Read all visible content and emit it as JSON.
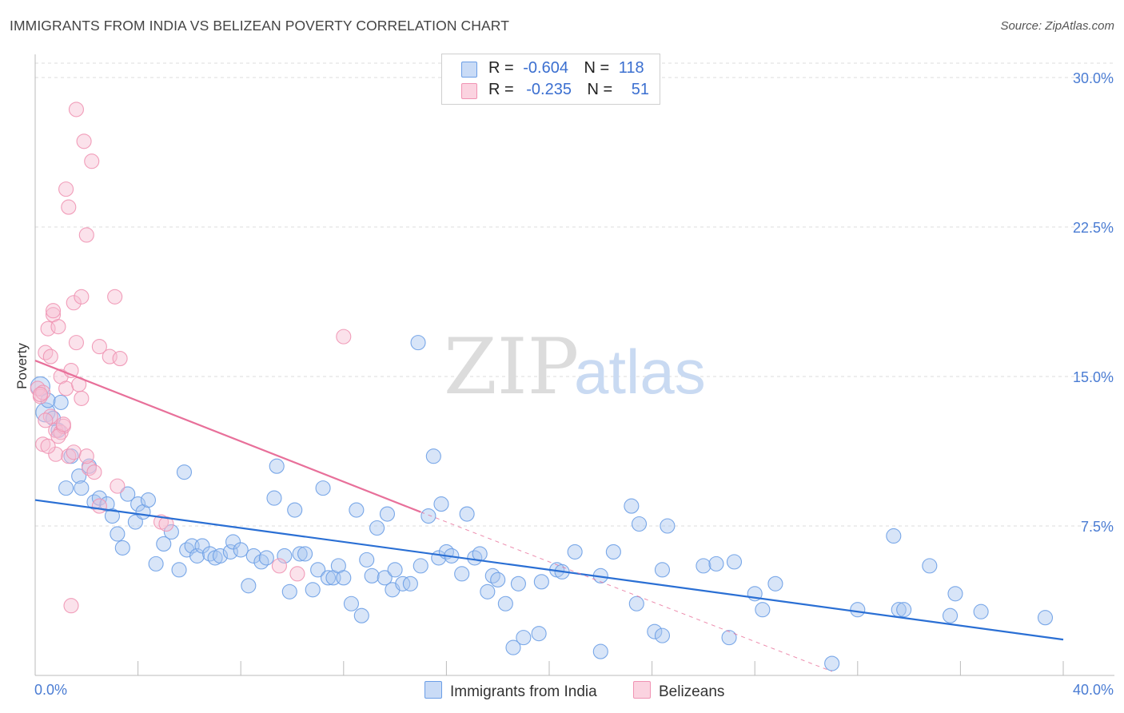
{
  "title": "IMMIGRANTS FROM INDIA VS BELIZEAN POVERTY CORRELATION CHART",
  "source": "Source: ZipAtlas.com",
  "watermark": {
    "zip": "ZIP",
    "atlas": "atlas"
  },
  "colors": {
    "blue": "#6b9ee6",
    "blue_fill": "#a9c6f0",
    "pink": "#f093b3",
    "pink_fill": "#f7bfd2",
    "blue_line": "#2a6fd4",
    "pink_line": "#e8709a",
    "tick_text": "#4a7cd3"
  },
  "legend": {
    "rows": [
      {
        "r_label": "R =",
        "r_value": "-0.604",
        "n_label": "N =",
        "n_value": "118"
      },
      {
        "r_label": "R =",
        "r_value": "-0.235",
        "n_label": "N =",
        "n_value": "51"
      }
    ]
  },
  "bottom_legend": {
    "india": "Immigrants from India",
    "belize": "Belizeans"
  },
  "chart_data": {
    "type": "scatter",
    "title": "IMMIGRANTS FROM INDIA VS BELIZEAN POVERTY CORRELATION CHART",
    "xlabel": "",
    "ylabel": "Poverty",
    "xlim": [
      0,
      40
    ],
    "ylim": [
      0,
      30.0
    ],
    "x_tick_labels": [
      "0.0%",
      "40.0%"
    ],
    "y_ticks": [
      7.5,
      15.0,
      22.5,
      30.0
    ],
    "y_tick_labels": [
      "7.5%",
      "15.0%",
      "22.5%",
      "30.0%"
    ],
    "grid": true,
    "legend_position": "top-center",
    "series": [
      {
        "name": "Immigrants from India",
        "trend": [
          [
            0,
            8.8
          ],
          [
            40,
            1.8
          ]
        ],
        "points": [
          [
            0.2,
            14.5
          ],
          [
            0.4,
            13.2
          ],
          [
            0.5,
            13.8
          ],
          [
            0.9,
            12.3
          ],
          [
            1.0,
            13.7
          ],
          [
            1.2,
            9.4
          ],
          [
            1.4,
            11.0
          ],
          [
            1.7,
            10.0
          ],
          [
            1.8,
            9.4
          ],
          [
            2.1,
            10.5
          ],
          [
            2.3,
            8.7
          ],
          [
            2.5,
            8.9
          ],
          [
            2.8,
            8.6
          ],
          [
            3.0,
            8.0
          ],
          [
            3.2,
            7.1
          ],
          [
            3.4,
            6.4
          ],
          [
            3.6,
            9.1
          ],
          [
            3.9,
            7.7
          ],
          [
            4.0,
            8.6
          ],
          [
            4.2,
            8.2
          ],
          [
            4.4,
            8.8
          ],
          [
            4.7,
            5.6
          ],
          [
            5.0,
            6.6
          ],
          [
            5.3,
            7.2
          ],
          [
            5.6,
            5.3
          ],
          [
            5.8,
            10.2
          ],
          [
            5.9,
            6.3
          ],
          [
            6.1,
            6.5
          ],
          [
            6.3,
            6.0
          ],
          [
            6.5,
            6.5
          ],
          [
            6.8,
            6.1
          ],
          [
            7.0,
            5.9
          ],
          [
            7.2,
            6.0
          ],
          [
            7.6,
            6.2
          ],
          [
            7.7,
            6.7
          ],
          [
            8.0,
            6.3
          ],
          [
            8.3,
            4.5
          ],
          [
            8.5,
            6.0
          ],
          [
            8.8,
            5.7
          ],
          [
            9.0,
            5.9
          ],
          [
            9.3,
            8.9
          ],
          [
            9.4,
            10.5
          ],
          [
            9.7,
            6.0
          ],
          [
            9.9,
            4.2
          ],
          [
            10.1,
            8.3
          ],
          [
            10.3,
            6.1
          ],
          [
            10.5,
            6.1
          ],
          [
            10.8,
            4.3
          ],
          [
            11.0,
            5.3
          ],
          [
            11.2,
            9.4
          ],
          [
            11.4,
            4.9
          ],
          [
            11.6,
            4.9
          ],
          [
            11.8,
            5.5
          ],
          [
            12.0,
            4.9
          ],
          [
            12.3,
            3.6
          ],
          [
            12.5,
            8.3
          ],
          [
            12.7,
            3.0
          ],
          [
            12.9,
            5.8
          ],
          [
            13.1,
            5.0
          ],
          [
            13.3,
            7.4
          ],
          [
            13.6,
            4.9
          ],
          [
            13.7,
            8.1
          ],
          [
            13.9,
            4.3
          ],
          [
            14.0,
            5.3
          ],
          [
            14.3,
            4.6
          ],
          [
            14.6,
            4.6
          ],
          [
            14.9,
            16.7
          ],
          [
            15.0,
            5.5
          ],
          [
            15.3,
            8.0
          ],
          [
            15.5,
            11.0
          ],
          [
            15.7,
            5.9
          ],
          [
            15.8,
            8.6
          ],
          [
            16.0,
            6.2
          ],
          [
            16.2,
            6.0
          ],
          [
            16.6,
            5.1
          ],
          [
            16.8,
            8.1
          ],
          [
            17.1,
            5.9
          ],
          [
            17.3,
            6.1
          ],
          [
            17.6,
            4.2
          ],
          [
            17.8,
            5.0
          ],
          [
            18.0,
            4.8
          ],
          [
            18.3,
            3.6
          ],
          [
            18.6,
            1.4
          ],
          [
            18.8,
            4.6
          ],
          [
            19.0,
            1.9
          ],
          [
            19.6,
            2.1
          ],
          [
            19.7,
            4.7
          ],
          [
            20.3,
            5.3
          ],
          [
            20.5,
            5.2
          ],
          [
            21.0,
            6.2
          ],
          [
            22.0,
            1.2
          ],
          [
            22.0,
            5.0
          ],
          [
            22.5,
            6.2
          ],
          [
            23.2,
            8.5
          ],
          [
            23.4,
            3.6
          ],
          [
            23.5,
            7.6
          ],
          [
            24.1,
            2.2
          ],
          [
            24.4,
            2.0
          ],
          [
            24.4,
            5.3
          ],
          [
            24.6,
            7.5
          ],
          [
            26.0,
            5.5
          ],
          [
            26.5,
            5.6
          ],
          [
            27.0,
            1.9
          ],
          [
            27.2,
            5.7
          ],
          [
            28.0,
            4.1
          ],
          [
            28.3,
            3.3
          ],
          [
            28.8,
            4.6
          ],
          [
            31.0,
            0.6
          ],
          [
            32.0,
            3.3
          ],
          [
            33.4,
            7.0
          ],
          [
            33.6,
            3.3
          ],
          [
            33.8,
            3.3
          ],
          [
            34.8,
            5.5
          ],
          [
            35.6,
            3.0
          ],
          [
            35.8,
            4.1
          ],
          [
            36.8,
            3.2
          ],
          [
            39.3,
            2.9
          ],
          [
            0.7,
            12.9
          ]
        ]
      },
      {
        "name": "Belizeans",
        "trend": [
          [
            0,
            15.8
          ],
          [
            15.0,
            8.2
          ]
        ],
        "trend_extension": [
          [
            15.0,
            8.2
          ],
          [
            31.0,
            0.2
          ]
        ],
        "points": [
          [
            0.1,
            14.4
          ],
          [
            0.2,
            14.0
          ],
          [
            0.3,
            11.6
          ],
          [
            0.4,
            16.2
          ],
          [
            0.5,
            17.4
          ],
          [
            0.6,
            16.0
          ],
          [
            0.7,
            18.1
          ],
          [
            0.7,
            18.3
          ],
          [
            0.8,
            11.1
          ],
          [
            0.8,
            12.3
          ],
          [
            0.9,
            17.5
          ],
          [
            1.0,
            15.0
          ],
          [
            1.0,
            12.2
          ],
          [
            1.1,
            12.5
          ],
          [
            1.2,
            14.4
          ],
          [
            1.2,
            24.4
          ],
          [
            1.3,
            11.0
          ],
          [
            1.3,
            23.5
          ],
          [
            1.4,
            15.3
          ],
          [
            1.5,
            18.7
          ],
          [
            1.6,
            16.7
          ],
          [
            1.6,
            28.4
          ],
          [
            1.7,
            14.6
          ],
          [
            1.8,
            19.0
          ],
          [
            1.8,
            13.9
          ],
          [
            1.9,
            26.8
          ],
          [
            2.0,
            22.1
          ],
          [
            2.1,
            10.4
          ],
          [
            2.2,
            25.8
          ],
          [
            2.3,
            10.2
          ],
          [
            2.5,
            8.5
          ],
          [
            2.5,
            16.5
          ],
          [
            2.9,
            16.0
          ],
          [
            3.1,
            19.0
          ],
          [
            3.2,
            9.5
          ],
          [
            3.3,
            15.9
          ],
          [
            4.9,
            7.7
          ],
          [
            5.1,
            7.6
          ],
          [
            9.5,
            5.5
          ],
          [
            10.2,
            5.1
          ],
          [
            12.0,
            17.0
          ],
          [
            1.4,
            3.5
          ],
          [
            0.9,
            12.0
          ],
          [
            1.1,
            12.6
          ],
          [
            0.5,
            11.5
          ],
          [
            0.3,
            14.2
          ],
          [
            0.6,
            13.0
          ],
          [
            1.5,
            11.2
          ],
          [
            2.0,
            11.0
          ],
          [
            0.2,
            14.1
          ],
          [
            0.4,
            12.8
          ]
        ]
      }
    ]
  }
}
